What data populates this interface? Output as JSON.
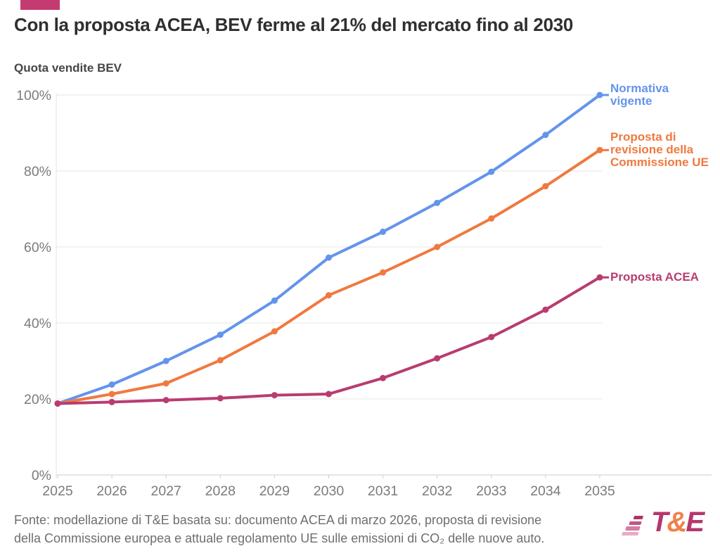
{
  "page": {
    "title": "Con la proposta ACEA, BEV ferme al 21% del mercato fino al 2030",
    "subtitle": "Quota vendite BEV",
    "footer": "Fonte: modellazione di T&E basata su: documento ACEA di marzo 2026, proposta di revisione\ndella Commissione europea e attuale regolamento UE sulle emissioni di CO₂ delle nuove auto.",
    "logo": {
      "t": "T",
      "amp": "&",
      "e": "E"
    }
  },
  "colors": {
    "brand_mark": "#c43b72",
    "grid": "#eaeaea",
    "axis": "#d6d6d6",
    "tick": "#cfcfcf",
    "axis_text": "#7b7b7b"
  },
  "chart_data": {
    "type": "line",
    "title": "Con la proposta ACEA, BEV ferme al 21% del mercato fino al 2030",
    "ylabel": "Quota vendite BEV",
    "xlabel": "",
    "x": [
      2025,
      2026,
      2027,
      2028,
      2029,
      2030,
      2031,
      2032,
      2033,
      2034,
      2035
    ],
    "series": [
      {
        "name": "Normativa vigente",
        "label_lines": "Normativa\nvigente",
        "color": "#6394ec",
        "values": [
          18.8,
          23.8,
          30.0,
          36.9,
          45.9,
          57.2,
          64.0,
          71.6,
          79.8,
          89.5,
          100.0
        ]
      },
      {
        "name": "Proposta di revisione della Commissione UE",
        "label_lines": "Proposta di\nrevisione della\nCommissione UE",
        "color": "#f0793f",
        "values": [
          18.8,
          21.3,
          24.1,
          30.2,
          37.8,
          47.3,
          53.3,
          60.0,
          67.5,
          76.0,
          85.5
        ]
      },
      {
        "name": "Proposta ACEA",
        "label_lines": "Proposta ACEA",
        "color": "#b83c70",
        "values": [
          18.8,
          19.2,
          19.7,
          20.2,
          21.0,
          21.3,
          25.5,
          30.7,
          36.3,
          43.5,
          52.0
        ]
      }
    ],
    "y_ticks_pct": [
      0,
      20,
      40,
      60,
      80,
      100
    ],
    "y_tick_labels": [
      "0%",
      "20%",
      "40%",
      "60%",
      "80%",
      "100%"
    ],
    "ylim": [
      0,
      100
    ],
    "grid": true,
    "markers": true,
    "legend_position": "right-of-line-ends"
  }
}
